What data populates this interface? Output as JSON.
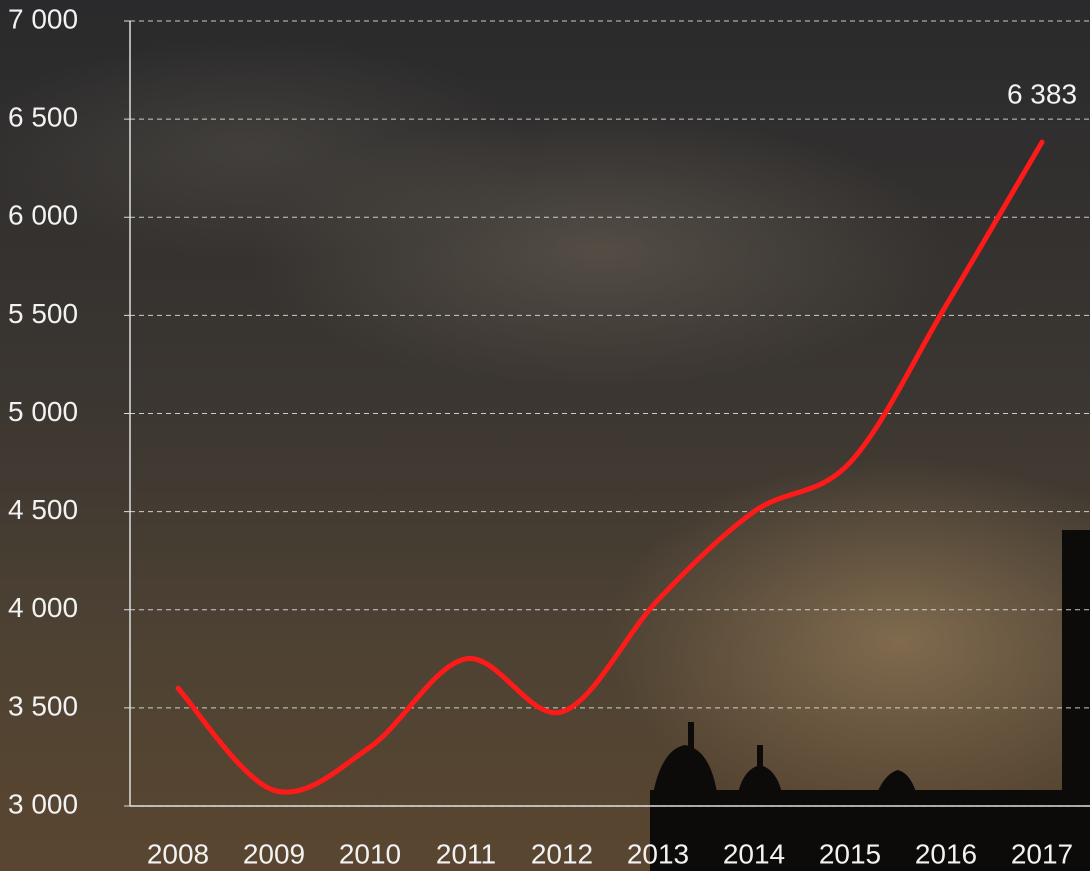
{
  "chart_data": {
    "type": "line",
    "categories": [
      "2008",
      "2009",
      "2010",
      "2011",
      "2012",
      "2013",
      "2014",
      "2015",
      "2016",
      "2017"
    ],
    "series": [
      {
        "color": "#ff1a1a",
        "values": [
          3600,
          3080,
          3300,
          3750,
          3480,
          4050,
          4500,
          4750,
          5550,
          6383
        ],
        "value_labels": [
          null,
          null,
          null,
          null,
          null,
          null,
          null,
          null,
          null,
          "6 383"
        ]
      }
    ],
    "ylim": [
      3000,
      7000
    ],
    "yticks": [
      {
        "value": 3000,
        "label": "3 000"
      },
      {
        "value": 3500,
        "label": "3 500"
      },
      {
        "value": 4000,
        "label": "4 000"
      },
      {
        "value": 4500,
        "label": "4 500"
      },
      {
        "value": 5000,
        "label": "5 000"
      },
      {
        "value": 5500,
        "label": "5 500"
      },
      {
        "value": 6000,
        "label": "6 000"
      },
      {
        "value": 6500,
        "label": "6 500"
      },
      {
        "value": 7000,
        "label": "7 000"
      }
    ],
    "grid": true
  }
}
